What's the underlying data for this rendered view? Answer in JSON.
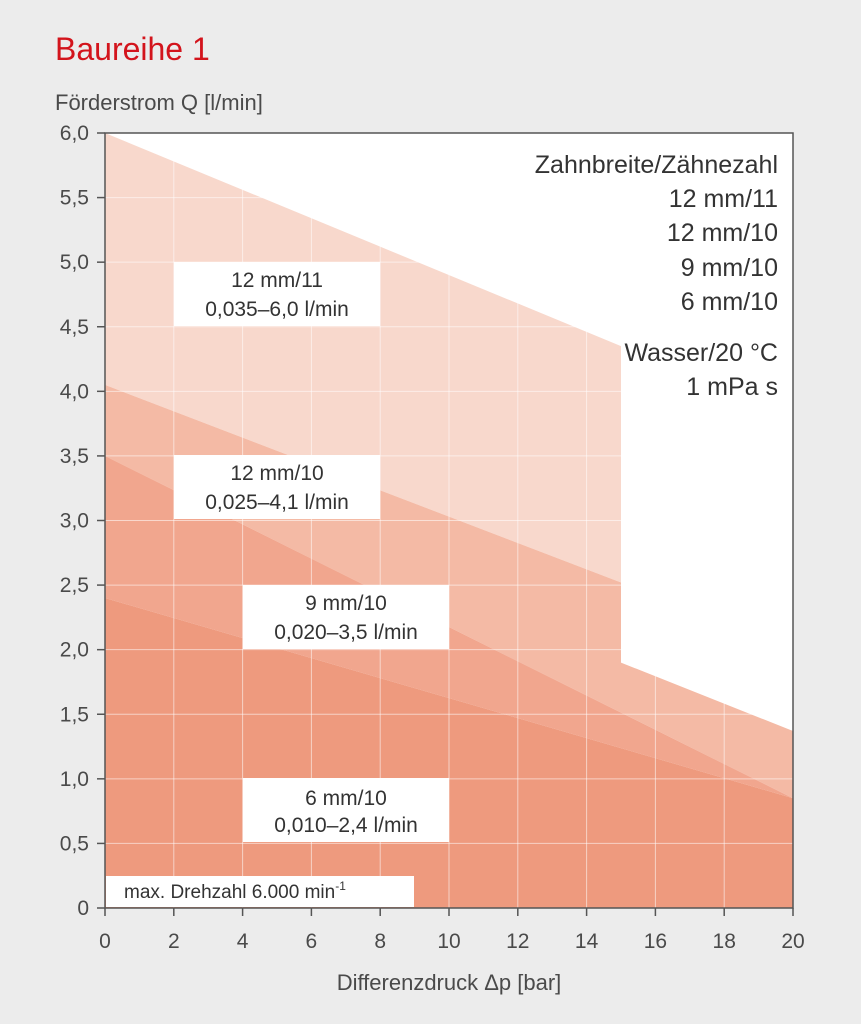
{
  "chart_data": {
    "type": "area",
    "title": "Baureihe 1",
    "ylabel": "Förderstrom Q [l/min]",
    "xlabel": "Differenzdruck Δp [bar]",
    "xlim": [
      0,
      20
    ],
    "ylim": [
      0,
      6
    ],
    "x_ticks": [
      "0",
      "2",
      "4",
      "6",
      "8",
      "10",
      "12",
      "14",
      "16",
      "18",
      "20"
    ],
    "y_ticks": [
      "0",
      "0,5",
      "1,0",
      "1,5",
      "2,0",
      "2,5",
      "3,0",
      "3,5",
      "4,0",
      "4,5",
      "5,0",
      "5,5",
      "6,0"
    ],
    "grid": true,
    "series": [
      {
        "name": "12 mm/11",
        "range_label": "0,035–6,0 l/min",
        "color": "#f8d8cc",
        "points": [
          [
            0,
            6.0
          ],
          [
            15,
            4.35
          ],
          [
            15,
            2.52
          ],
          [
            0,
            4.05
          ]
        ]
      },
      {
        "name": "12 mm/10",
        "range_label": "0,025–4,1 l/min",
        "color": "#f4baa5",
        "points": [
          [
            0,
            4.05
          ],
          [
            15,
            2.52
          ],
          [
            15,
            1.9
          ],
          [
            20,
            1.37
          ],
          [
            20,
            0.85
          ],
          [
            0,
            3.5
          ]
        ]
      },
      {
        "name": "9 mm/10",
        "range_label": "0,020–3,5 l/min",
        "color": "#f1a68e",
        "points": [
          [
            0,
            3.5
          ],
          [
            20,
            0.85
          ],
          [
            0,
            2.4
          ]
        ]
      },
      {
        "name": "6 mm/10",
        "range_label": "0,010–2,4 l/min",
        "color": "#ee9a7e",
        "points": [
          [
            0,
            2.4
          ],
          [
            20,
            0.85
          ],
          [
            20,
            0
          ],
          [
            0,
            0
          ]
        ]
      }
    ],
    "legend": {
      "heading": "Zahnbreite/Zähnezahl",
      "entries": [
        "12 mm/11",
        "12 mm/10",
        "9 mm/10",
        "6 mm/10"
      ],
      "medium": "Wasser/20 °C",
      "viscosity": "1 mPa s",
      "placement": "top-right"
    },
    "note": "max. Drehzahl 6.000 min",
    "note_superscript": "-1"
  }
}
